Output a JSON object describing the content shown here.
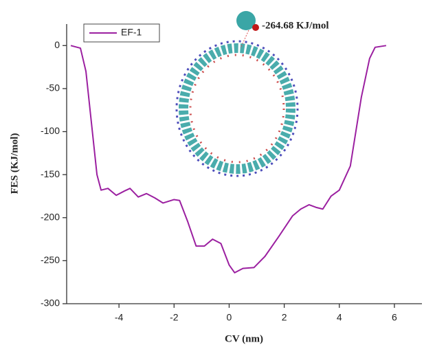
{
  "chart_data": {
    "type": "line",
    "xlabel": "CV (nm)",
    "ylabel": "FES (KJ/mol)",
    "annotation": "-264.68  KJ/mol",
    "xlim": [
      -5.9,
      7
    ],
    "xticks": [
      -4,
      -2,
      0,
      2,
      4,
      6
    ],
    "ylim": [
      -300,
      25
    ],
    "yticks": [
      0,
      -50,
      -100,
      -150,
      -200,
      -250,
      -300
    ],
    "legend": "upper left",
    "series": [
      {
        "name": "EF-1",
        "color": "#9b1fa0",
        "x": [
          -5.75,
          -5.4,
          -5.2,
          -5.0,
          -4.8,
          -4.65,
          -4.4,
          -4.1,
          -3.8,
          -3.6,
          -3.3,
          -3.0,
          -2.7,
          -2.4,
          -2.0,
          -1.8,
          -1.5,
          -1.2,
          -0.9,
          -0.6,
          -0.3,
          0,
          0.2,
          0.5,
          0.9,
          1.3,
          1.8,
          2.3,
          2.6,
          2.9,
          3.15,
          3.4,
          3.7,
          4.0,
          4.4,
          4.8,
          5.1,
          5.3,
          5.7
        ],
        "values": [
          0,
          -3,
          -30,
          -90,
          -150,
          -168,
          -166,
          -174,
          -169,
          -166,
          -176,
          -172,
          -177,
          -183,
          -179,
          -180,
          -205,
          -233,
          -233,
          -225,
          -230,
          -255,
          -264,
          -259,
          -258,
          -245,
          -222,
          -198,
          -190,
          -185,
          -188,
          -190,
          -175,
          -168,
          -140,
          -60,
          -15,
          -2,
          0
        ]
      }
    ]
  }
}
